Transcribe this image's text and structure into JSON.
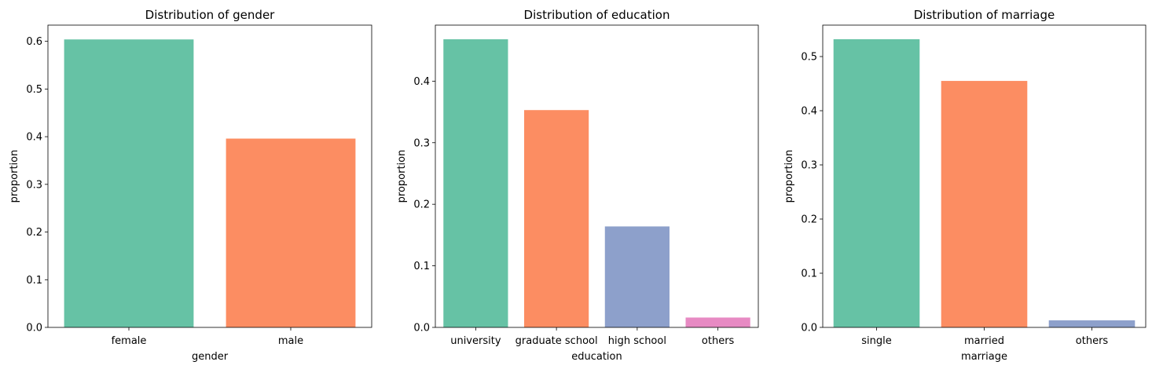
{
  "colors": {
    "palette": [
      "#66c2a5",
      "#fc8d62",
      "#8da0cb",
      "#e78ac3"
    ],
    "axis": "#000000"
  },
  "chart_data": [
    {
      "type": "bar",
      "title": "Distribution of gender",
      "xlabel": "gender",
      "ylabel": "proportion",
      "categories": [
        "female",
        "male"
      ],
      "values": [
        0.604,
        0.396
      ],
      "ylim": [
        0,
        0.634
      ],
      "yticks": [
        0.0,
        0.1,
        0.2,
        0.3,
        0.4,
        0.5,
        0.6
      ],
      "ytick_labels": [
        "0.0",
        "0.1",
        "0.2",
        "0.3",
        "0.4",
        "0.5",
        "0.6"
      ],
      "grid": false
    },
    {
      "type": "bar",
      "title": "Distribution of education",
      "xlabel": "education",
      "ylabel": "proportion",
      "categories": [
        "university",
        "graduate school",
        "high school",
        "others"
      ],
      "values": [
        0.468,
        0.353,
        0.164,
        0.016
      ],
      "ylim": [
        0,
        0.491
      ],
      "yticks": [
        0.0,
        0.1,
        0.2,
        0.3,
        0.4
      ],
      "ytick_labels": [
        "0.0",
        "0.1",
        "0.2",
        "0.3",
        "0.4"
      ],
      "grid": false
    },
    {
      "type": "bar",
      "title": "Distribution of marriage",
      "xlabel": "marriage",
      "ylabel": "proportion",
      "categories": [
        "single",
        "married",
        "others"
      ],
      "values": [
        0.532,
        0.455,
        0.013
      ],
      "ylim": [
        0,
        0.558
      ],
      "yticks": [
        0.0,
        0.1,
        0.2,
        0.3,
        0.4,
        0.5
      ],
      "ytick_labels": [
        "0.0",
        "0.1",
        "0.2",
        "0.3",
        "0.4",
        "0.5"
      ],
      "grid": false
    }
  ]
}
